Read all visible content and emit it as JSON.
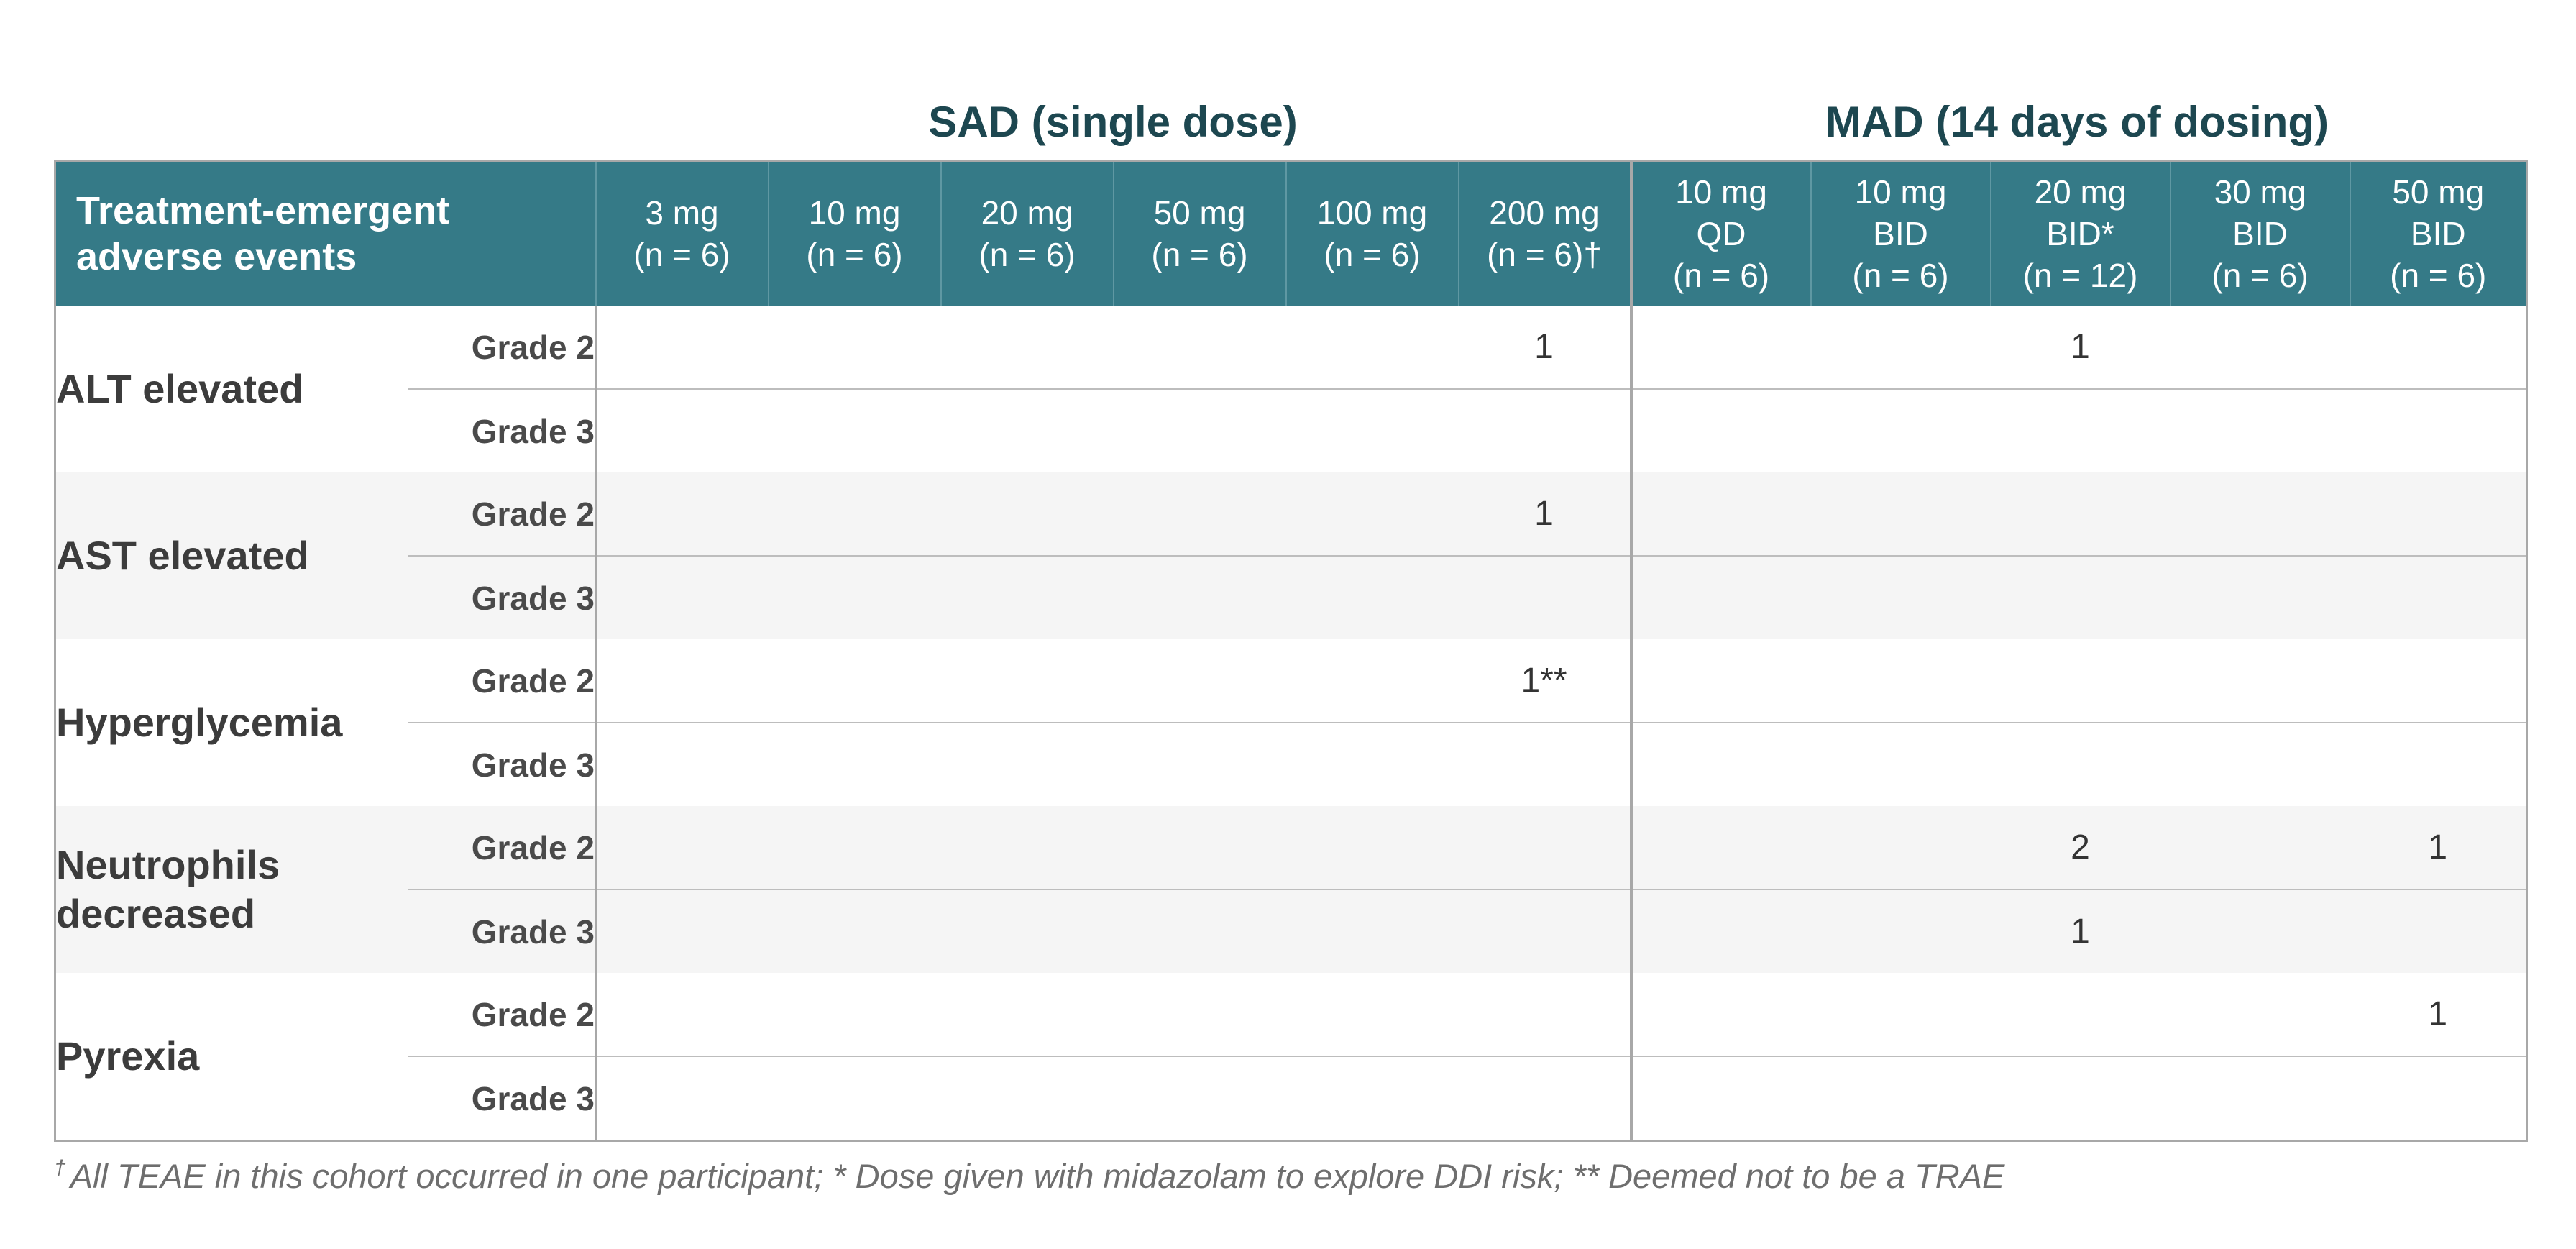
{
  "groups": {
    "sad": "SAD (single dose)",
    "mad": "MAD (14 days of dosing)"
  },
  "table": {
    "corner_header": [
      "Treatment-emergent",
      "adverse events"
    ],
    "columns": [
      {
        "group": "SAD",
        "lines": [
          "3 mg",
          "(n = 6)"
        ]
      },
      {
        "group": "SAD",
        "lines": [
          "10 mg",
          "(n = 6)"
        ]
      },
      {
        "group": "SAD",
        "lines": [
          "20 mg",
          "(n = 6)"
        ]
      },
      {
        "group": "SAD",
        "lines": [
          "50 mg",
          "(n = 6)"
        ]
      },
      {
        "group": "SAD",
        "lines": [
          "100 mg",
          "(n = 6)"
        ]
      },
      {
        "group": "SAD",
        "lines": [
          "200 mg",
          "(n = 6)†"
        ]
      },
      {
        "group": "MAD",
        "lines": [
          "10 mg",
          "QD",
          "(n = 6)"
        ]
      },
      {
        "group": "MAD",
        "lines": [
          "10 mg",
          "BID",
          "(n = 6)"
        ]
      },
      {
        "group": "MAD",
        "lines": [
          "20 mg",
          "BID*",
          "(n = 12)"
        ]
      },
      {
        "group": "MAD",
        "lines": [
          "30 mg",
          "BID",
          "(n = 6)"
        ]
      },
      {
        "group": "MAD",
        "lines": [
          "50 mg",
          "BID",
          "(n = 6)"
        ]
      }
    ],
    "events": [
      {
        "name": [
          "ALT elevated"
        ],
        "shaded": false,
        "rows": [
          {
            "grade": "Grade 2",
            "values": [
              "",
              "",
              "",
              "",
              "",
              "1",
              "",
              "",
              "1",
              "",
              ""
            ]
          },
          {
            "grade": "Grade 3",
            "values": [
              "",
              "",
              "",
              "",
              "",
              "",
              "",
              "",
              "",
              "",
              ""
            ]
          }
        ]
      },
      {
        "name": [
          "AST elevated"
        ],
        "shaded": true,
        "rows": [
          {
            "grade": "Grade 2",
            "values": [
              "",
              "",
              "",
              "",
              "",
              "1",
              "",
              "",
              "",
              "",
              ""
            ]
          },
          {
            "grade": "Grade 3",
            "values": [
              "",
              "",
              "",
              "",
              "",
              "",
              "",
              "",
              "",
              "",
              ""
            ]
          }
        ]
      },
      {
        "name": [
          "Hyperglycemia"
        ],
        "shaded": false,
        "rows": [
          {
            "grade": "Grade 2",
            "values": [
              "",
              "",
              "",
              "",
              "",
              "1**",
              "",
              "",
              "",
              "",
              ""
            ]
          },
          {
            "grade": "Grade 3",
            "values": [
              "",
              "",
              "",
              "",
              "",
              "",
              "",
              "",
              "",
              "",
              ""
            ]
          }
        ]
      },
      {
        "name": [
          "Neutrophils",
          "decreased"
        ],
        "shaded": true,
        "rows": [
          {
            "grade": "Grade 2",
            "values": [
              "",
              "",
              "",
              "",
              "",
              "",
              "",
              "",
              "2",
              "",
              "1"
            ]
          },
          {
            "grade": "Grade 3",
            "values": [
              "",
              "",
              "",
              "",
              "",
              "",
              "",
              "",
              "1",
              "",
              ""
            ]
          }
        ]
      },
      {
        "name": [
          "Pyrexia"
        ],
        "shaded": false,
        "rows": [
          {
            "grade": "Grade 2",
            "values": [
              "",
              "",
              "",
              "",
              "",
              "",
              "",
              "",
              "",
              "",
              "1"
            ]
          },
          {
            "grade": "Grade 3",
            "values": [
              "",
              "",
              "",
              "",
              "",
              "",
              "",
              "",
              "",
              "",
              ""
            ]
          }
        ]
      }
    ]
  },
  "footnote": {
    "dagger": "†",
    "text": "All TEAE in this cohort occurred in one participant; * Dose given with midazolam to explore DDI risk; ** Deemed not to be a TRAE"
  },
  "colors": {
    "header_bg": "#357a87",
    "group_title": "#1d4750",
    "shaded_row": "#f5f5f5",
    "border": "#a8a8a8"
  }
}
